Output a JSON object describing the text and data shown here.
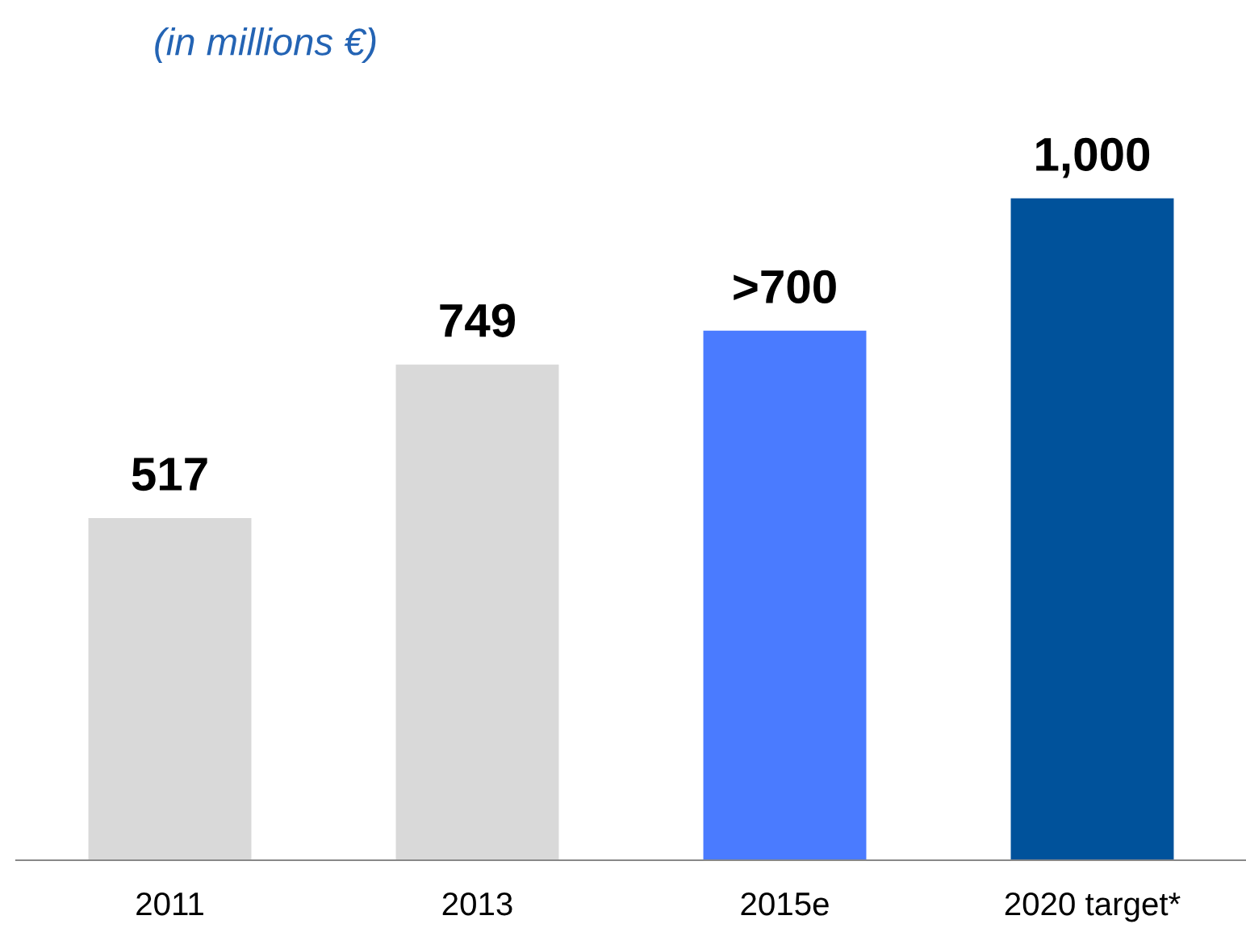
{
  "chart_data": {
    "type": "bar",
    "subtitle": "(in millions €)",
    "categories": [
      "2011",
      "2013",
      "2015e",
      "2020 target*"
    ],
    "values": [
      517,
      749,
      800,
      1000
    ],
    "value_labels": [
      "517",
      "749",
      ">700",
      "1,000"
    ],
    "colors": [
      "#d9d9d9",
      "#d9d9d9",
      "#4a7bff",
      "#00529b"
    ],
    "grid": false,
    "legend": false
  }
}
